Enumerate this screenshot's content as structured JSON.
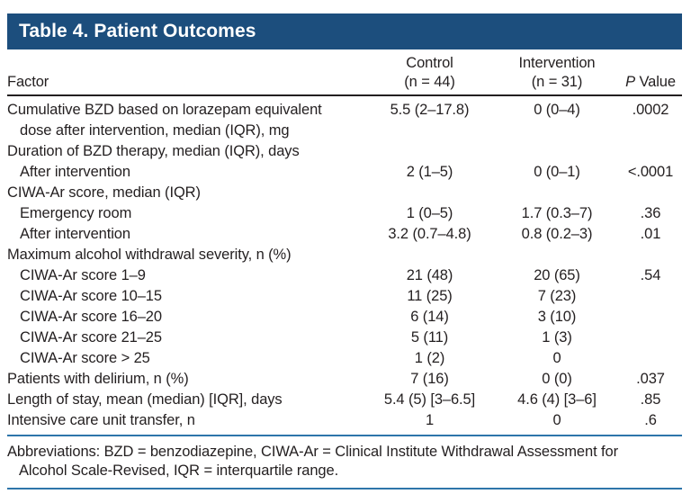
{
  "title": "Table 4. Patient Outcomes",
  "header": {
    "factor": "Factor",
    "control_line1": "Control",
    "control_line2": "(n = 44)",
    "intervention_line1": "Intervention",
    "intervention_line2": "(n = 31)",
    "p_italic": "P",
    "p_rest": " Value"
  },
  "rows": [
    {
      "label": "Cumulative BZD based on lorazepam equivalent",
      "indent": 0,
      "control": "5.5 (2–17.8)",
      "intervention": "0 (0–4)",
      "p": ".0002"
    },
    {
      "label": "dose after intervention, median (IQR), mg",
      "indent": 1,
      "control": "",
      "intervention": "",
      "p": ""
    },
    {
      "label": "Duration of BZD therapy, median (IQR), days",
      "indent": 0,
      "control": "",
      "intervention": "",
      "p": ""
    },
    {
      "label": "After intervention",
      "indent": 1,
      "control": "2 (1–5)",
      "intervention": "0 (0–1)",
      "p": "<.0001"
    },
    {
      "label": "CIWA-Ar score, median (IQR)",
      "indent": 0,
      "control": "",
      "intervention": "",
      "p": ""
    },
    {
      "label": "Emergency room",
      "indent": 1,
      "control": "1 (0–5)",
      "intervention": "1.7 (0.3–7)",
      "p": ".36"
    },
    {
      "label": "After intervention",
      "indent": 1,
      "control": "3.2 (0.7–4.8)",
      "intervention": "0.8 (0.2–3)",
      "p": ".01"
    },
    {
      "label": "Maximum alcohol withdrawal severity, n (%)",
      "indent": 0,
      "control": "",
      "intervention": "",
      "p": ""
    },
    {
      "label": "CIWA-Ar score 1–9",
      "indent": 1,
      "control": "21 (48)",
      "intervention": "20 (65)",
      "p": ".54"
    },
    {
      "label": "CIWA-Ar score 10–15",
      "indent": 1,
      "control": "11 (25)",
      "intervention": "7 (23)",
      "p": ""
    },
    {
      "label": "CIWA-Ar score 16–20",
      "indent": 1,
      "control": "6 (14)",
      "intervention": "3 (10)",
      "p": ""
    },
    {
      "label": "CIWA-Ar score 21–25",
      "indent": 1,
      "control": "5 (11)",
      "intervention": "1 (3)",
      "p": ""
    },
    {
      "label": "CIWA-Ar score > 25",
      "indent": 1,
      "control": "1 (2)",
      "intervention": "0",
      "p": ""
    },
    {
      "label": "Patients with delirium, n (%)",
      "indent": 0,
      "control": "7 (16)",
      "intervention": "0 (0)",
      "p": ".037"
    },
    {
      "label": "Length of stay, mean (median) [IQR], days",
      "indent": 0,
      "control": "5.4 (5) [3–6.5]",
      "intervention": "4.6 (4) [3–6]",
      "p": ".85"
    },
    {
      "label": "Intensive care unit transfer, n",
      "indent": 0,
      "control": "1",
      "intervention": "0",
      "p": ".6"
    }
  ],
  "footnote": {
    "line1": "Abbreviations: BZD = benzodiazepine, CIWA-Ar = Clinical Institute Withdrawal Assessment for",
    "line2": "Alcohol Scale-Revised, IQR = interquartile range."
  },
  "colors": {
    "header_bg": "#1c4e7d",
    "title_text": "#ffffff",
    "rule_blue": "#2e75aa",
    "rule_dark": "#231f20",
    "body_text": "#231f20"
  }
}
